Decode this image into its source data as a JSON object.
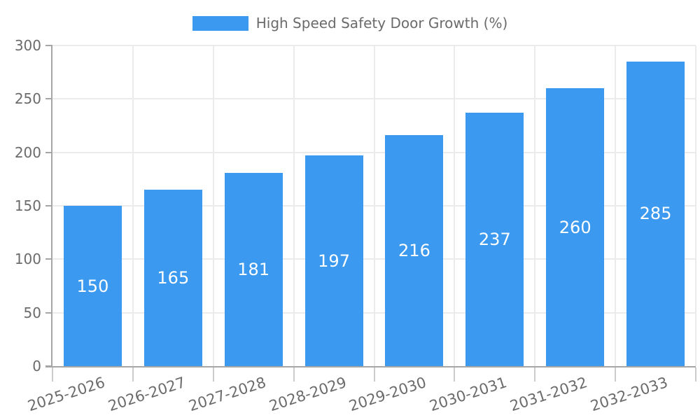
{
  "legend": {
    "label": "High Speed Safety Door Growth (%)"
  },
  "chart_data": {
    "type": "bar",
    "title": "High Speed Safety Door Growth (%)",
    "categories": [
      "2025-2026",
      "2026-2027",
      "2027-2028",
      "2028-2029",
      "2029-2030",
      "2030-2031",
      "2031-2032",
      "2032-2033"
    ],
    "values": [
      150,
      165,
      181,
      197,
      216,
      237,
      260,
      285
    ],
    "series": [
      {
        "name": "High Speed Safety Door Growth (%)",
        "values": [
          150,
          165,
          181,
          197,
          216,
          237,
          260,
          285
        ]
      }
    ],
    "xlabel": "",
    "ylabel": "",
    "ylim": [
      0,
      300
    ],
    "yticks": [
      0,
      50,
      100,
      150,
      200,
      250,
      300
    ],
    "grid": true,
    "legend_position": "top-center",
    "value_label_position": "inside-middle",
    "x_tick_rotation_deg": -18,
    "colors": {
      "bar": "#3b99f0",
      "value_label": "#ffffff",
      "tick_label": "#6b6b6b",
      "legend_text": "#6b6b6b",
      "axis_line": "#a6a6a6",
      "gridline": "#ebebeb",
      "x_tick_mark": "#cccccc",
      "background": "#ffffff"
    }
  }
}
